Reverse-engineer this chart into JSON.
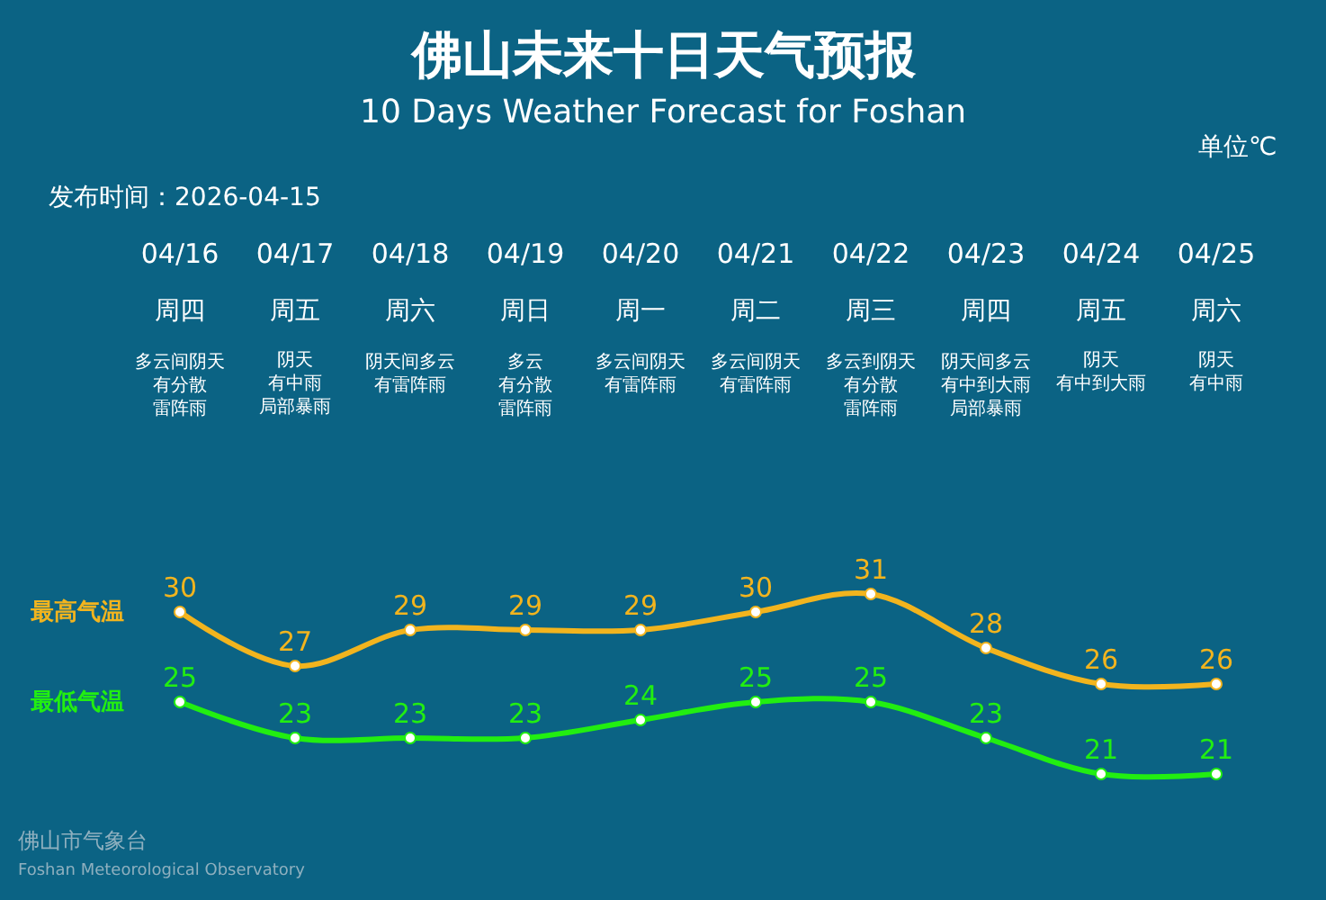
{
  "chart_data": {
    "type": "line",
    "title": "佛山未来十日天气预报",
    "subtitle": "10 Days Weather Forecast for Foshan",
    "categories": [
      "04/16",
      "04/17",
      "04/18",
      "04/19",
      "04/20",
      "04/21",
      "04/22",
      "04/23",
      "04/24",
      "04/25"
    ],
    "series": [
      {
        "name": "最高气温",
        "color": "#f2b41e",
        "values": [
          30,
          27,
          29,
          29,
          29,
          30,
          31,
          28,
          26,
          26
        ]
      },
      {
        "name": "最低气温",
        "color": "#22ee11",
        "values": [
          25,
          23,
          23,
          23,
          24,
          25,
          25,
          23,
          21,
          21
        ]
      }
    ],
    "annotations": [
      "发布时间：2026-04-15",
      "单位℃",
      "佛山市气象台",
      "Foshan Meteorological Observatory",
      "周四",
      "周五",
      "周六",
      "周日",
      "周一",
      "周二",
      "周三",
      "周四",
      "周五",
      "周六",
      "多云间阴天有分散雷阵雨",
      "阴天有中雨局部暴雨",
      "阴天间多云有雷阵雨",
      "多云有分散雷阵雨",
      "多云间阴天有雷阵雨",
      "多云间阴天有雷阵雨",
      "多云到阴天有分散雷阵雨",
      "阴天间多云有中到大雨局部暴雨",
      "阴天有中到大雨",
      "阴天有中雨"
    ],
    "data_labels": true,
    "marker": "circle",
    "line_style": "solid",
    "grid": false,
    "legend": false,
    "tick_labels": "x"
  }
}
